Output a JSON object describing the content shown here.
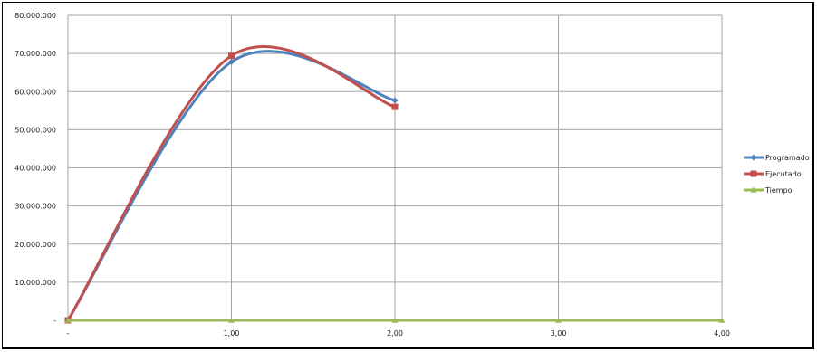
{
  "chart_data": {
    "type": "line",
    "title": "",
    "xlabel": "",
    "ylabel": "",
    "x_tick_labels": [
      "-",
      "1,00",
      "2,00",
      "3,00",
      "4,00"
    ],
    "y_tick_labels": [
      "-",
      "10.000.000",
      "20.000.000",
      "30.000.000",
      "40.000.000",
      "50.000.000",
      "60.000.000",
      "70.000.000",
      "80.000.000"
    ],
    "xlim": [
      0,
      4
    ],
    "ylim": [
      0,
      80000000
    ],
    "grid": "vertical and horizontal major gridlines",
    "legend_position": "right",
    "smoothed": true,
    "series": [
      {
        "name": "Programado",
        "color": "#4F81BD",
        "marker": "diamond",
        "x": [
          0,
          1,
          2
        ],
        "y": [
          0,
          67800000,
          57700000
        ]
      },
      {
        "name": "Ejecutado",
        "color": "#C0504D",
        "marker": "square",
        "x": [
          0,
          1,
          2
        ],
        "y": [
          0,
          69400000,
          56000000
        ]
      },
      {
        "name": "Tiempo",
        "color": "#9BBB59",
        "marker": "triangle",
        "x": [
          0,
          1,
          2,
          3,
          4
        ],
        "y": [
          0,
          0,
          0,
          0,
          0
        ]
      }
    ]
  }
}
